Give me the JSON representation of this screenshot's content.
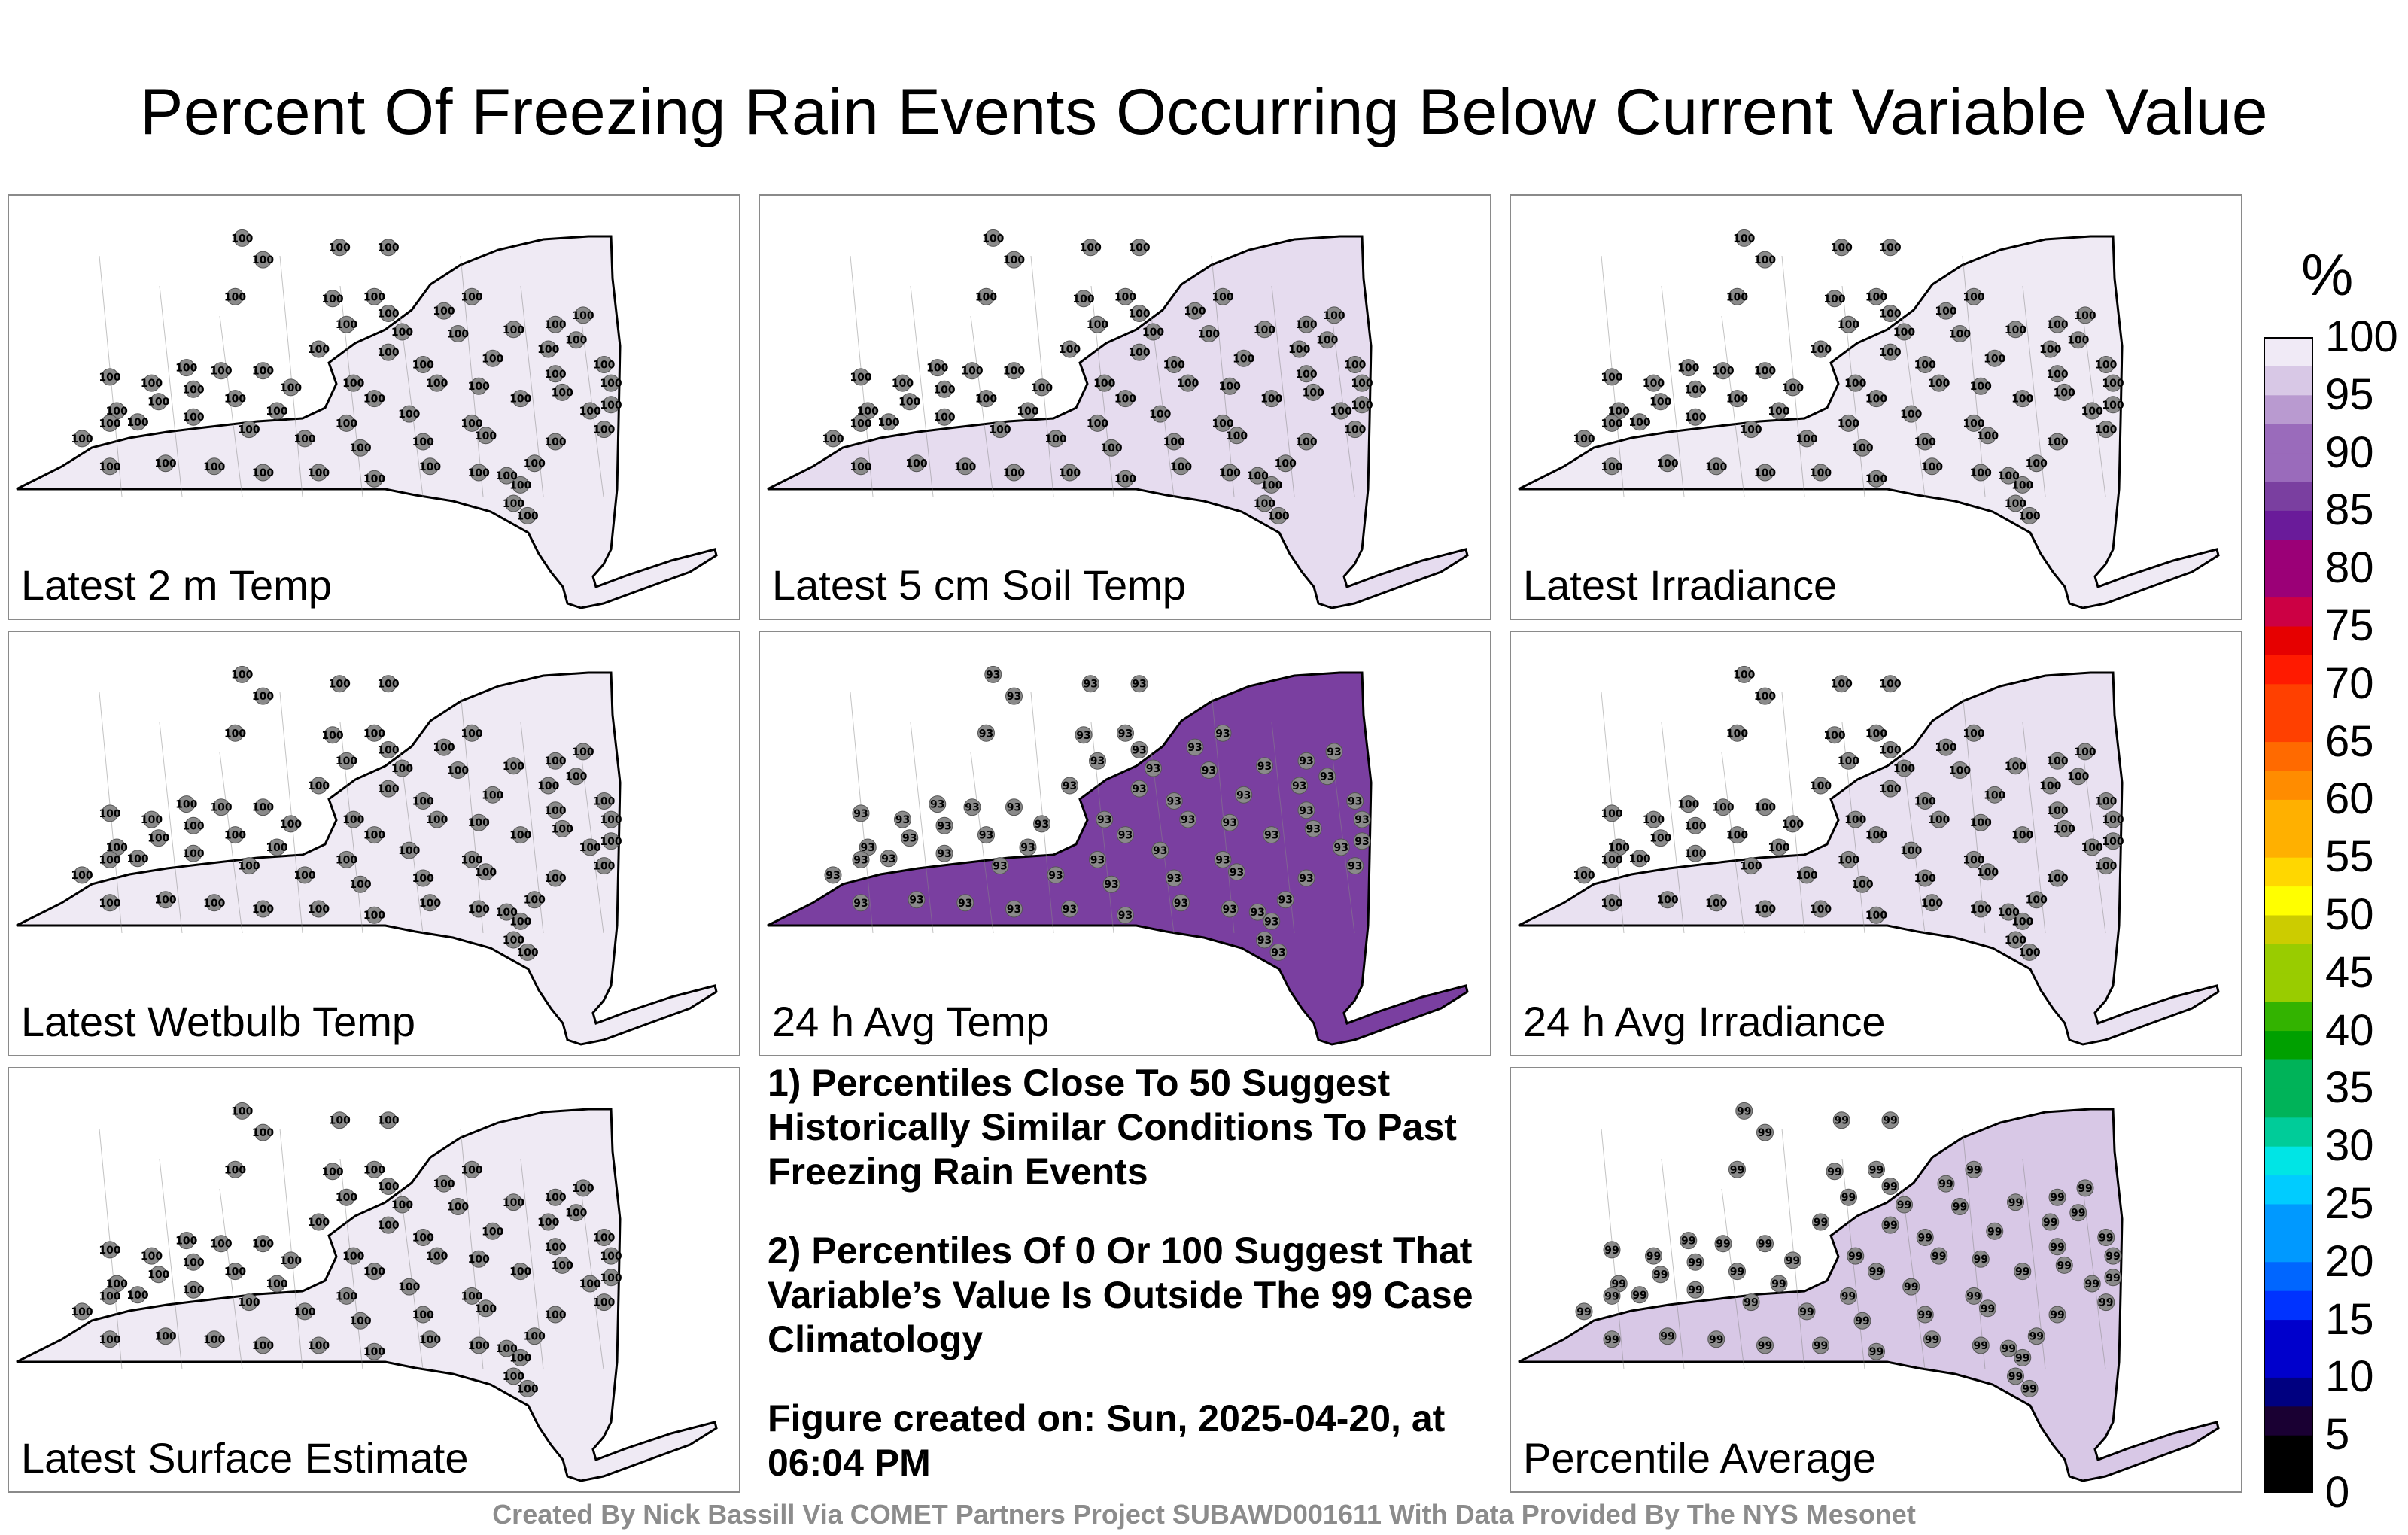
{
  "title": "Percent Of Freezing Rain Events Occurring Below Current Variable Value",
  "colorbar": {
    "unit": "%",
    "ticks": [
      "100",
      "95",
      "90",
      "85",
      "80",
      "75",
      "70",
      "65",
      "60",
      "55",
      "50",
      "45",
      "40",
      "35",
      "30",
      "25",
      "20",
      "15",
      "10",
      "5",
      "0"
    ]
  },
  "panels": [
    {
      "label": "Latest 2 m Temp",
      "fill": "#efeaf4",
      "value": "100"
    },
    {
      "label": "Latest 5 cm Soil Temp",
      "fill": "#e6dcef",
      "value": "100"
    },
    {
      "label": "Latest Irradiance",
      "fill": "#efeaf4",
      "value": "100"
    },
    {
      "label": "Latest Wetbulb Temp",
      "fill": "#efeaf4",
      "value": "100"
    },
    {
      "label": "24 h Avg Temp",
      "fill": "#7a3fa0",
      "value": "93"
    },
    {
      "label": "24 h Avg Irradiance",
      "fill": "#e9e1f1",
      "value": "100"
    },
    {
      "label": "Latest Surface Estimate",
      "fill": "#efeaf4",
      "value": "100"
    },
    {
      "label": "Percentile Average",
      "fill": "#d8c8e6",
      "value": "99"
    }
  ],
  "notes": [
    "1) Percentiles Close To 50 Suggest Historically Similar Conditions To Past Freezing Rain Events",
    "2) Percentiles Of 0 Or 100 Suggest That Variable’s Value Is Outside The 99 Case Climatology",
    "Figure created on: Sun, 2025-04-20, at 06:04 PM"
  ],
  "footer": "Created By Nick Bassill Via COMET Partners Project SUBAWD001611 With Data Provided By The NYS Mesonet"
}
